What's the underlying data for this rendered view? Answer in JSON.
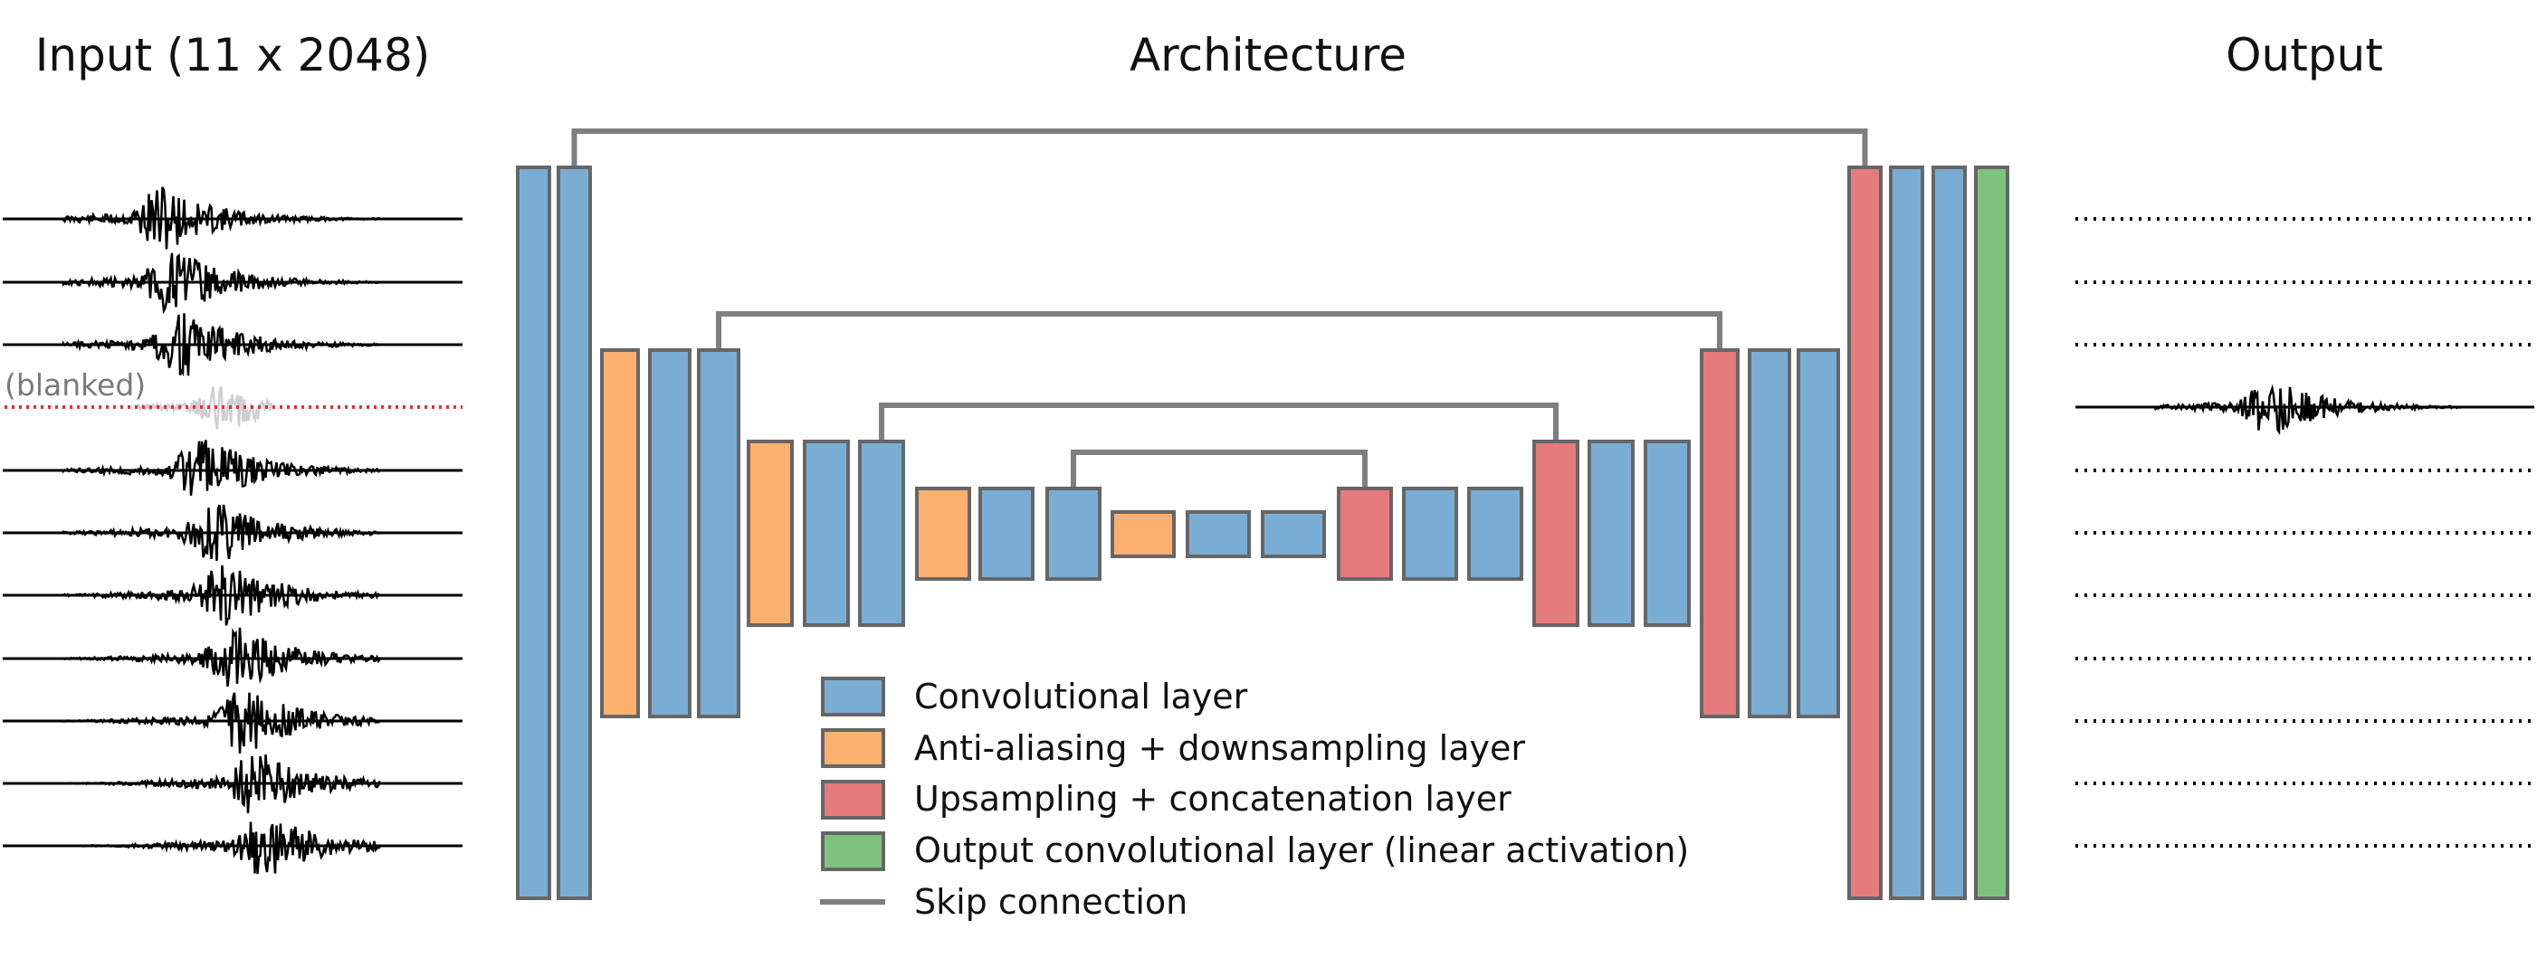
{
  "titles": {
    "input": "Input (11 x 2048)",
    "architecture": "Architecture",
    "output": "Output"
  },
  "input_panel": {
    "trace_count": 11,
    "blanked_trace_index": 3,
    "blanked_label": "(blanked)"
  },
  "output_panel": {
    "trace_count": 11,
    "active_trace_index": 3
  },
  "colors": {
    "conv": "#7aadd4",
    "downsample": "#fcb06f",
    "upsample": "#e57b7c",
    "output_conv": "#7ec37d",
    "skip": "#7f7f7f",
    "block_edge": "#666666",
    "blanked_line": "#e8302c",
    "signal": "#000000"
  },
  "architecture": {
    "layers": [
      {
        "kind": "conv",
        "level": 0
      },
      {
        "kind": "conv",
        "level": 0,
        "skip_out": "s0"
      },
      {
        "kind": "downsample",
        "level": 1
      },
      {
        "kind": "conv",
        "level": 1
      },
      {
        "kind": "conv",
        "level": 1,
        "skip_out": "s1"
      },
      {
        "kind": "downsample",
        "level": 2
      },
      {
        "kind": "conv",
        "level": 2
      },
      {
        "kind": "conv",
        "level": 2,
        "skip_out": "s2"
      },
      {
        "kind": "downsample",
        "level": 3
      },
      {
        "kind": "conv",
        "level": 3
      },
      {
        "kind": "conv",
        "level": 3,
        "skip_out": "s3"
      },
      {
        "kind": "downsample",
        "level": 4
      },
      {
        "kind": "conv",
        "level": 4
      },
      {
        "kind": "conv",
        "level": 4
      },
      {
        "kind": "upsample",
        "level": 3,
        "skip_in": "s3"
      },
      {
        "kind": "conv",
        "level": 3
      },
      {
        "kind": "conv",
        "level": 3
      },
      {
        "kind": "upsample",
        "level": 2,
        "skip_in": "s2"
      },
      {
        "kind": "conv",
        "level": 2
      },
      {
        "kind": "conv",
        "level": 2
      },
      {
        "kind": "upsample",
        "level": 1,
        "skip_in": "s1"
      },
      {
        "kind": "conv",
        "level": 1
      },
      {
        "kind": "conv",
        "level": 1
      },
      {
        "kind": "upsample",
        "level": 0,
        "skip_in": "s0"
      },
      {
        "kind": "conv",
        "level": 0
      },
      {
        "kind": "conv",
        "level": 0
      },
      {
        "kind": "output_conv",
        "level": 0
      }
    ],
    "skip_connections": [
      "s0",
      "s1",
      "s2",
      "s3"
    ]
  },
  "legend": {
    "items": [
      {
        "kind": "conv",
        "label": "Convolutional layer"
      },
      {
        "kind": "downsample",
        "label": "Anti-aliasing + downsampling layer"
      },
      {
        "kind": "upsample",
        "label": "Upsampling + concatenation layer"
      },
      {
        "kind": "output_conv",
        "label": "Output convolutional layer (linear activation)"
      },
      {
        "kind": "skip",
        "label": "Skip connection"
      }
    ]
  }
}
